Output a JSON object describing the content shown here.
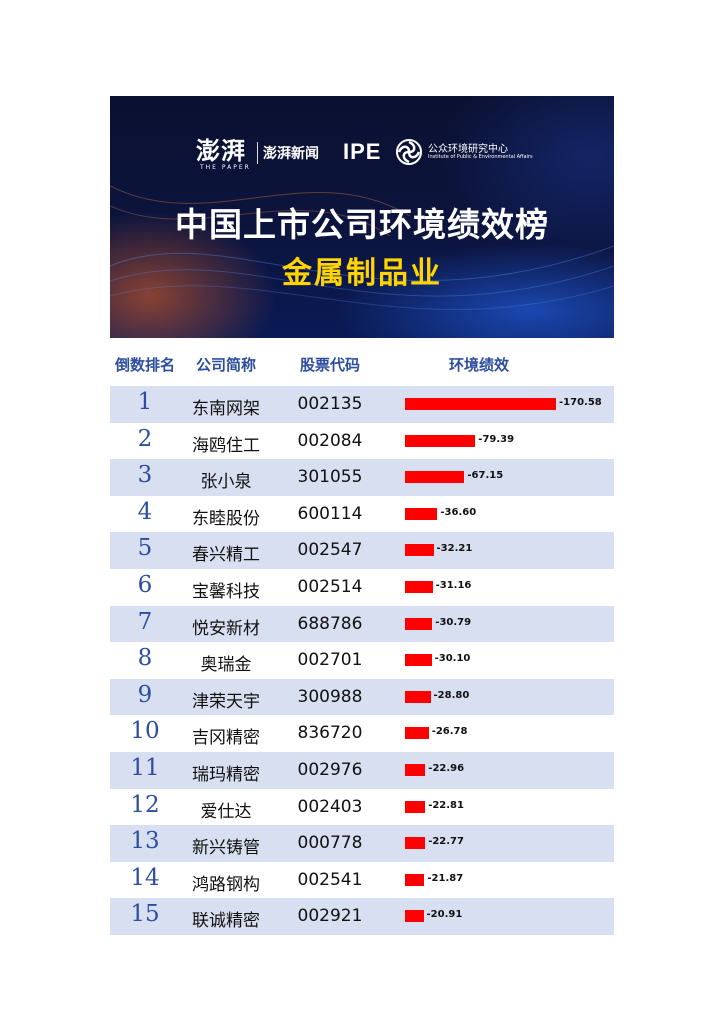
{
  "banner": {
    "logo_calligraphy": "澎湃",
    "logo_calligraphy_sub": "THE PAPER",
    "logo_paper": "澎湃新闻",
    "logo_ipe": "IPE",
    "logo_ipe_cn": "公众环境研究中心",
    "logo_ipe_en": "Institute of Public & Environmental Affairs",
    "title": "中国上市公司环境绩效榜",
    "subtitle": "金属制品业"
  },
  "colors": {
    "banner_bg": "#0c1540",
    "title": "#ffffff",
    "subtitle": "#ffd400",
    "header_text": "#2d4ea0",
    "row_shade": "#d8dff0",
    "bar": "#ff0000"
  },
  "chart_data": {
    "type": "table",
    "columns": [
      "倒数排名",
      "公司简称",
      "股票代码",
      "环境绩效"
    ],
    "rows": [
      {
        "rank": "1",
        "name": "东南网架",
        "code": "002135",
        "value": -170.58,
        "label": "-170.58"
      },
      {
        "rank": "2",
        "name": "海鸥住工",
        "code": "002084",
        "value": -79.39,
        "label": "-79.39"
      },
      {
        "rank": "3",
        "name": "张小泉",
        "code": "301055",
        "value": -67.15,
        "label": "-67.15"
      },
      {
        "rank": "4",
        "name": "东睦股份",
        "code": "600114",
        "value": -36.6,
        "label": "-36.60"
      },
      {
        "rank": "5",
        "name": "春兴精工",
        "code": "002547",
        "value": -32.21,
        "label": "-32.21"
      },
      {
        "rank": "6",
        "name": "宝馨科技",
        "code": "002514",
        "value": -31.16,
        "label": "-31.16"
      },
      {
        "rank": "7",
        "name": "悦安新材",
        "code": "688786",
        "value": -30.79,
        "label": "-30.79"
      },
      {
        "rank": "8",
        "name": "奥瑞金",
        "code": "002701",
        "value": -30.1,
        "label": "-30.10"
      },
      {
        "rank": "9",
        "name": "津荣天宇",
        "code": "300988",
        "value": -28.8,
        "label": "-28.80"
      },
      {
        "rank": "10",
        "name": "吉冈精密",
        "code": "836720",
        "value": -26.78,
        "label": "-26.78"
      },
      {
        "rank": "11",
        "name": "瑞玛精密",
        "code": "002976",
        "value": -22.96,
        "label": "-22.96"
      },
      {
        "rank": "12",
        "name": "爱仕达",
        "code": "002403",
        "value": -22.81,
        "label": "-22.81"
      },
      {
        "rank": "13",
        "name": "新兴铸管",
        "code": "000778",
        "value": -22.77,
        "label": "-22.77"
      },
      {
        "rank": "14",
        "name": "鸿路钢构",
        "code": "002541",
        "value": -21.87,
        "label": "-21.87"
      },
      {
        "rank": "15",
        "name": "联诚精密",
        "code": "002921",
        "value": -20.91,
        "label": "-20.91"
      }
    ]
  }
}
